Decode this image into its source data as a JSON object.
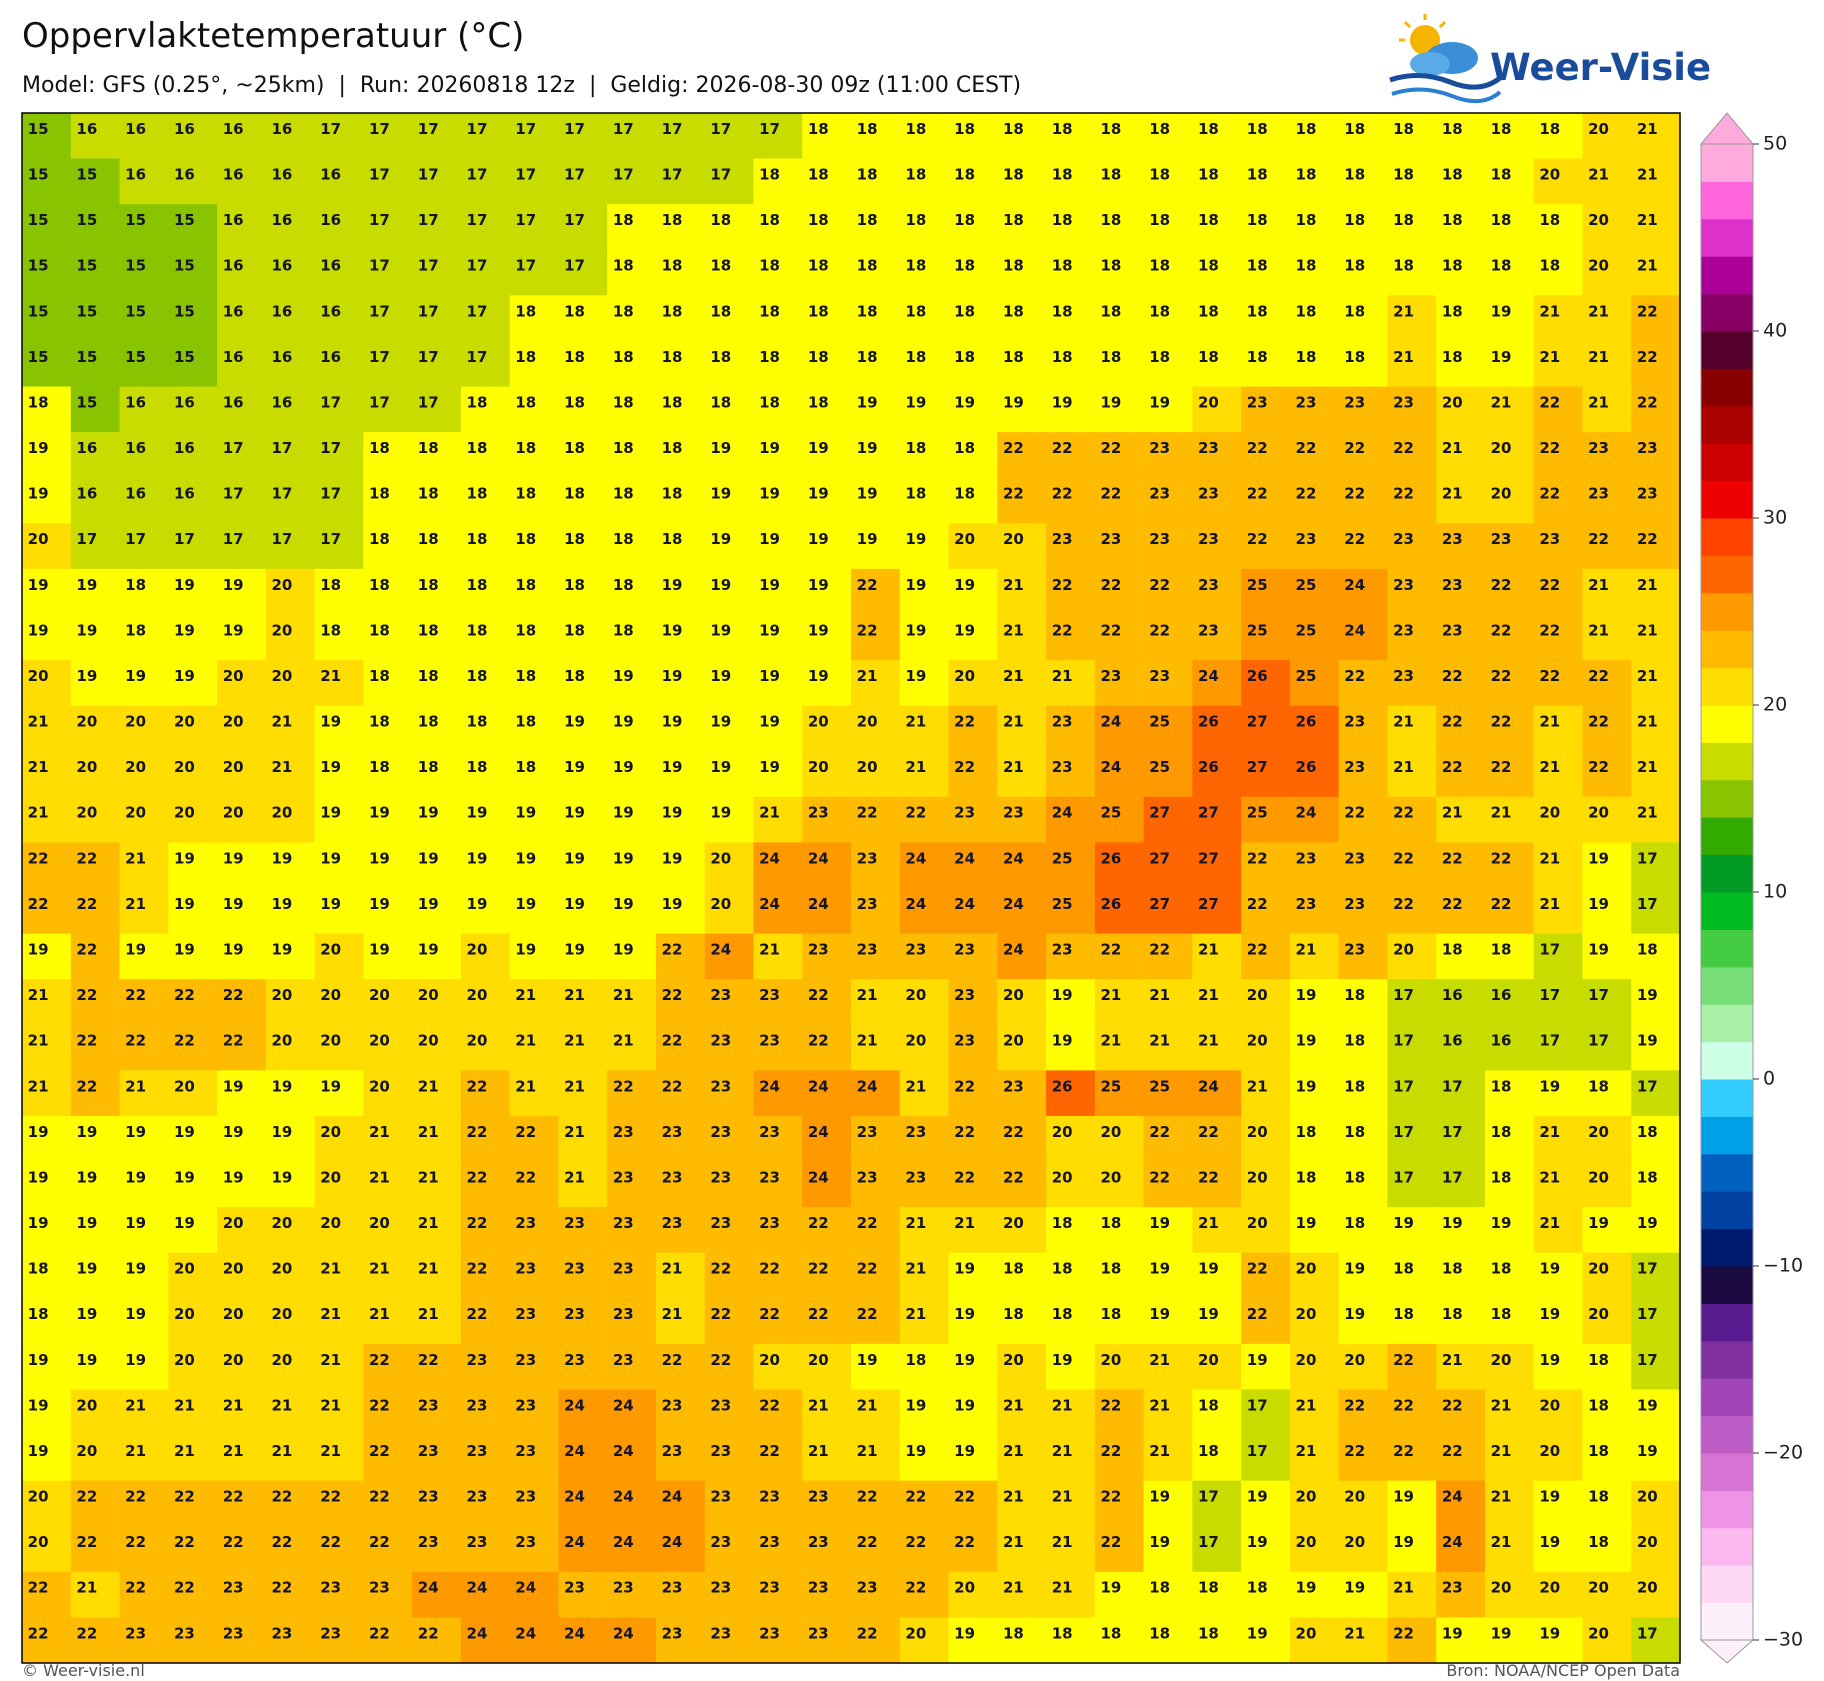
{
  "header": {
    "title": "Oppervlaktetemperatuur (°C)",
    "subtitle": "Model: GFS (0.25°, ~25km)  |  Run: 20260818 12z  |  Geldig: 2026-08-30 09z (11:00 CEST)",
    "logo": "Weer-Visie"
  },
  "map": {
    "values": [
      [
        15,
        16,
        16,
        16,
        16,
        16,
        17,
        17,
        17,
        17,
        17,
        17,
        17,
        17,
        17,
        17,
        18,
        18,
        18,
        18,
        18,
        18,
        18,
        18,
        18,
        18,
        18,
        18,
        18,
        18,
        18,
        18,
        20,
        21
      ],
      [
        15,
        15,
        16,
        16,
        16,
        16,
        16,
        17,
        17,
        17,
        17,
        17,
        17,
        17,
        17,
        18,
        18,
        18,
        18,
        18,
        18,
        18,
        18,
        18,
        18,
        18,
        18,
        18,
        18,
        18,
        18,
        20,
        21,
        21
      ],
      [
        15,
        15,
        15,
        15,
        16,
        16,
        16,
        17,
        17,
        17,
        17,
        17,
        18,
        18,
        18,
        18,
        18,
        18,
        18,
        18,
        18,
        18,
        18,
        18,
        18,
        18,
        18,
        18,
        18,
        18,
        18,
        18,
        20,
        21
      ],
      [
        15,
        15,
        15,
        15,
        16,
        16,
        16,
        17,
        17,
        17,
        17,
        17,
        18,
        18,
        18,
        18,
        18,
        18,
        18,
        18,
        18,
        18,
        18,
        18,
        18,
        18,
        18,
        18,
        18,
        18,
        18,
        18,
        20,
        21
      ],
      [
        15,
        15,
        15,
        15,
        16,
        16,
        16,
        17,
        17,
        17,
        18,
        18,
        18,
        18,
        18,
        18,
        18,
        18,
        18,
        18,
        18,
        18,
        18,
        18,
        18,
        18,
        18,
        18,
        21,
        18,
        19,
        21,
        21,
        22
      ],
      [
        15,
        15,
        15,
        15,
        16,
        16,
        16,
        17,
        17,
        17,
        18,
        18,
        18,
        18,
        18,
        18,
        18,
        18,
        18,
        18,
        18,
        18,
        18,
        18,
        18,
        18,
        18,
        18,
        21,
        18,
        19,
        21,
        21,
        22
      ],
      [
        18,
        15,
        16,
        16,
        16,
        16,
        17,
        17,
        17,
        18,
        18,
        18,
        18,
        18,
        18,
        18,
        18,
        19,
        19,
        19,
        19,
        19,
        19,
        19,
        20,
        23,
        23,
        23,
        23,
        20,
        21,
        22,
        21,
        22
      ],
      [
        19,
        16,
        16,
        16,
        17,
        17,
        17,
        18,
        18,
        18,
        18,
        18,
        18,
        18,
        19,
        19,
        19,
        19,
        18,
        18,
        22,
        22,
        22,
        23,
        23,
        22,
        22,
        22,
        22,
        21,
        20,
        22,
        23,
        23
      ],
      [
        19,
        16,
        16,
        16,
        17,
        17,
        17,
        18,
        18,
        18,
        18,
        18,
        18,
        18,
        19,
        19,
        19,
        19,
        18,
        18,
        22,
        22,
        22,
        23,
        23,
        22,
        22,
        22,
        22,
        21,
        20,
        22,
        23,
        23
      ],
      [
        20,
        17,
        17,
        17,
        17,
        17,
        17,
        18,
        18,
        18,
        18,
        18,
        18,
        18,
        19,
        19,
        19,
        19,
        19,
        20,
        20,
        23,
        23,
        23,
        23,
        22,
        23,
        22,
        23,
        23,
        23,
        23,
        22,
        22
      ],
      [
        19,
        19,
        18,
        19,
        19,
        20,
        18,
        18,
        18,
        18,
        18,
        18,
        18,
        19,
        19,
        19,
        19,
        22,
        19,
        19,
        21,
        22,
        22,
        22,
        23,
        25,
        25,
        24,
        23,
        23,
        22,
        22,
        21,
        21
      ],
      [
        19,
        19,
        18,
        19,
        19,
        20,
        18,
        18,
        18,
        18,
        18,
        18,
        18,
        19,
        19,
        19,
        19,
        22,
        19,
        19,
        21,
        22,
        22,
        22,
        23,
        25,
        25,
        24,
        23,
        23,
        22,
        22,
        21,
        21
      ],
      [
        20,
        19,
        19,
        19,
        20,
        20,
        21,
        18,
        18,
        18,
        18,
        18,
        19,
        19,
        19,
        19,
        19,
        21,
        19,
        20,
        21,
        21,
        23,
        23,
        24,
        26,
        25,
        22,
        23,
        22,
        22,
        22,
        22,
        21
      ],
      [
        21,
        20,
        20,
        20,
        20,
        21,
        19,
        18,
        18,
        18,
        18,
        19,
        19,
        19,
        19,
        19,
        20,
        20,
        21,
        22,
        21,
        23,
        24,
        25,
        26,
        27,
        26,
        23,
        21,
        22,
        22,
        21,
        22,
        21
      ],
      [
        21,
        20,
        20,
        20,
        20,
        21,
        19,
        18,
        18,
        18,
        18,
        19,
        19,
        19,
        19,
        19,
        20,
        20,
        21,
        22,
        21,
        23,
        24,
        25,
        26,
        27,
        26,
        23,
        21,
        22,
        22,
        21,
        22,
        21
      ],
      [
        21,
        20,
        20,
        20,
        20,
        20,
        19,
        19,
        19,
        19,
        19,
        19,
        19,
        19,
        19,
        21,
        23,
        22,
        22,
        23,
        23,
        24,
        25,
        27,
        27,
        25,
        24,
        22,
        22,
        21,
        21,
        20,
        20,
        21
      ],
      [
        22,
        22,
        21,
        19,
        19,
        19,
        19,
        19,
        19,
        19,
        19,
        19,
        19,
        19,
        20,
        24,
        24,
        23,
        24,
        24,
        24,
        25,
        26,
        27,
        27,
        22,
        23,
        23,
        22,
        22,
        22,
        21,
        19,
        17
      ],
      [
        22,
        22,
        21,
        19,
        19,
        19,
        19,
        19,
        19,
        19,
        19,
        19,
        19,
        19,
        20,
        24,
        24,
        23,
        24,
        24,
        24,
        25,
        26,
        27,
        27,
        22,
        23,
        23,
        22,
        22,
        22,
        21,
        19,
        17
      ],
      [
        19,
        22,
        19,
        19,
        19,
        19,
        20,
        19,
        19,
        20,
        19,
        19,
        19,
        22,
        24,
        21,
        23,
        23,
        23,
        23,
        24,
        23,
        22,
        22,
        21,
        22,
        21,
        23,
        20,
        18,
        18,
        17,
        19,
        18
      ],
      [
        21,
        22,
        22,
        22,
        22,
        20,
        20,
        20,
        20,
        20,
        21,
        21,
        21,
        22,
        23,
        23,
        22,
        21,
        20,
        23,
        20,
        19,
        21,
        21,
        21,
        20,
        19,
        18,
        17,
        16,
        16,
        17,
        17,
        19
      ],
      [
        21,
        22,
        22,
        22,
        22,
        20,
        20,
        20,
        20,
        20,
        21,
        21,
        21,
        22,
        23,
        23,
        22,
        21,
        20,
        23,
        20,
        19,
        21,
        21,
        21,
        20,
        19,
        18,
        17,
        16,
        16,
        17,
        17,
        19
      ],
      [
        21,
        22,
        21,
        20,
        19,
        19,
        19,
        20,
        21,
        22,
        21,
        21,
        22,
        22,
        23,
        24,
        24,
        24,
        21,
        22,
        23,
        26,
        25,
        25,
        24,
        21,
        19,
        18,
        17,
        17,
        18,
        19,
        18,
        17
      ],
      [
        19,
        19,
        19,
        19,
        19,
        19,
        20,
        21,
        21,
        22,
        22,
        21,
        23,
        23,
        23,
        23,
        24,
        23,
        23,
        22,
        22,
        20,
        20,
        22,
        22,
        20,
        18,
        18,
        17,
        17,
        18,
        21,
        20,
        18
      ],
      [
        19,
        19,
        19,
        19,
        19,
        19,
        20,
        21,
        21,
        22,
        22,
        21,
        23,
        23,
        23,
        23,
        24,
        23,
        23,
        22,
        22,
        20,
        20,
        22,
        22,
        20,
        18,
        18,
        17,
        17,
        18,
        21,
        20,
        18
      ],
      [
        19,
        19,
        19,
        19,
        20,
        20,
        20,
        20,
        21,
        22,
        23,
        23,
        23,
        23,
        23,
        23,
        22,
        22,
        21,
        21,
        20,
        18,
        18,
        19,
        21,
        20,
        19,
        18,
        19,
        19,
        19,
        21,
        19,
        19
      ],
      [
        18,
        19,
        19,
        20,
        20,
        20,
        21,
        21,
        21,
        22,
        23,
        23,
        23,
        21,
        22,
        22,
        22,
        22,
        21,
        19,
        18,
        18,
        18,
        19,
        19,
        22,
        20,
        19,
        18,
        18,
        18,
        19,
        20,
        17
      ],
      [
        18,
        19,
        19,
        20,
        20,
        20,
        21,
        21,
        21,
        22,
        23,
        23,
        23,
        21,
        22,
        22,
        22,
        22,
        21,
        19,
        18,
        18,
        18,
        19,
        19,
        22,
        20,
        19,
        18,
        18,
        18,
        19,
        20,
        17
      ],
      [
        19,
        19,
        19,
        20,
        20,
        20,
        21,
        22,
        22,
        23,
        23,
        23,
        23,
        22,
        22,
        20,
        20,
        19,
        18,
        19,
        20,
        19,
        20,
        21,
        20,
        19,
        20,
        20,
        22,
        21,
        20,
        19,
        18,
        17
      ],
      [
        19,
        20,
        21,
        21,
        21,
        21,
        21,
        22,
        23,
        23,
        23,
        24,
        24,
        23,
        23,
        22,
        21,
        21,
        19,
        19,
        21,
        21,
        22,
        21,
        18,
        17,
        21,
        22,
        22,
        22,
        21,
        20,
        18,
        19
      ],
      [
        19,
        20,
        21,
        21,
        21,
        21,
        21,
        22,
        23,
        23,
        23,
        24,
        24,
        23,
        23,
        22,
        21,
        21,
        19,
        19,
        21,
        21,
        22,
        21,
        18,
        17,
        21,
        22,
        22,
        22,
        21,
        20,
        18,
        19
      ],
      [
        20,
        22,
        22,
        22,
        22,
        22,
        22,
        22,
        23,
        23,
        23,
        24,
        24,
        24,
        23,
        23,
        23,
        22,
        22,
        22,
        21,
        21,
        22,
        19,
        17,
        19,
        20,
        20,
        19,
        24,
        21,
        19,
        18,
        20
      ],
      [
        20,
        22,
        22,
        22,
        22,
        22,
        22,
        22,
        23,
        23,
        23,
        24,
        24,
        24,
        23,
        23,
        23,
        22,
        22,
        22,
        21,
        21,
        22,
        19,
        17,
        19,
        20,
        20,
        19,
        24,
        21,
        19,
        18,
        20
      ],
      [
        22,
        21,
        22,
        22,
        23,
        22,
        23,
        23,
        24,
        24,
        24,
        23,
        23,
        23,
        23,
        23,
        23,
        23,
        22,
        20,
        21,
        21,
        19,
        18,
        18,
        18,
        19,
        19,
        21,
        23,
        20,
        20,
        20,
        20
      ],
      [
        22,
        22,
        23,
        23,
        23,
        23,
        23,
        22,
        22,
        24,
        24,
        24,
        24,
        23,
        23,
        23,
        23,
        22,
        20,
        19,
        18,
        18,
        18,
        18,
        18,
        19,
        20,
        21,
        22,
        19,
        19,
        19,
        20,
        17
      ]
    ]
  },
  "colorbar": {
    "ticks": [
      50,
      40,
      30,
      20,
      10,
      0,
      {
        "value": -10,
        "label": "−10"
      },
      {
        "value": -20,
        "label": "−20"
      },
      {
        "value": -30,
        "label": "−30"
      }
    ],
    "colors": [
      "#fdf0fb",
      "#fdd9f6",
      "#fbb9f0",
      "#ee93e6",
      "#d673d3",
      "#be5cc6",
      "#a044b6",
      "#80309f",
      "#5a1a90",
      "#1a0a40",
      "#001a70",
      "#0040a0",
      "#0060c0",
      "#00a0e6",
      "#33ccff",
      "#ccffe6",
      "#a8f0a8",
      "#77dd77",
      "#44cc44",
      "#00bb22",
      "#009922",
      "#33aa00",
      "#88c400",
      "#c8dc00",
      "#ffff00",
      "#ffdd00",
      "#ffbb00",
      "#ff9900",
      "#ff6600",
      "#ff4400",
      "#ee0000",
      "#cc0000",
      "#aa0000",
      "#880000",
      "#55002a",
      "#880066",
      "#aa0099",
      "#dd33cc",
      "#ff66dd",
      "#ffaadd"
    ]
  },
  "footer": {
    "left": "© Weer-visie.nl",
    "right": "Bron: NOAA/NCEP Open Data"
  }
}
